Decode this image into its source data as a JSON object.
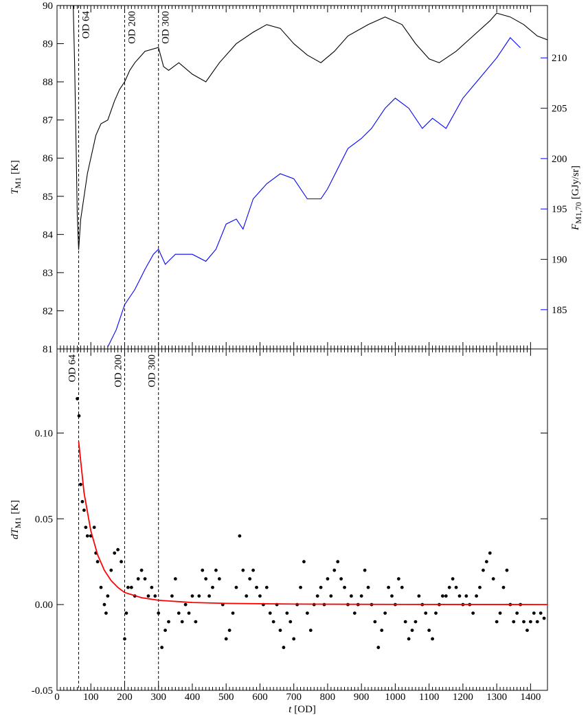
{
  "chart_data": [
    {
      "type": "line",
      "ylabel": {
        "symbol": "T",
        "subscript": "M1",
        "unit": "[K]"
      },
      "y2label": {
        "symbol": "F",
        "subscript": "M1,70",
        "unit": "[GJy/sr]"
      },
      "xlim": [
        0,
        1450
      ],
      "xticks": [
        0,
        100,
        200,
        300,
        400,
        500,
        600,
        700,
        800,
        900,
        1000,
        1100,
        1200,
        1300,
        1400
      ],
      "ylim": [
        81,
        90
      ],
      "yticks": [
        81,
        82,
        83,
        84,
        85,
        86,
        87,
        88,
        89,
        90
      ],
      "y2lim": [
        181.1,
        215.2
      ],
      "y2ticks": [
        185,
        190,
        195,
        200,
        205,
        210
      ],
      "vlines": [
        {
          "value": 64,
          "label": "OD 64"
        },
        {
          "value": 200,
          "label": "OD 200"
        },
        {
          "value": 300,
          "label": "OD 300"
        }
      ],
      "series": [
        {
          "color": "#000000",
          "x": [
            44,
            48,
            52,
            56,
            60,
            64,
            70,
            80,
            90,
            100,
            115,
            130,
            150,
            170,
            185,
            200,
            215,
            230,
            260,
            300,
            315,
            330,
            360,
            400,
            440,
            480,
            530,
            580,
            620,
            660,
            700,
            740,
            780,
            820,
            860,
            920,
            970,
            1020,
            1060,
            1100,
            1130,
            1180,
            1230,
            1280,
            1300,
            1340,
            1380,
            1420,
            1450
          ],
          "values": [
            91.5,
            90,
            88.5,
            86.5,
            84.5,
            83.6,
            84.4,
            85,
            85.6,
            86,
            86.6,
            86.9,
            87,
            87.5,
            87.8,
            88,
            88.3,
            88.5,
            88.8,
            88.9,
            88.4,
            88.3,
            88.5,
            88.2,
            88,
            88.5,
            89,
            89.3,
            89.5,
            89.4,
            89,
            88.7,
            88.5,
            88.8,
            89.2,
            89.5,
            89.7,
            89.5,
            89,
            88.6,
            88.5,
            88.8,
            89.2,
            89.6,
            89.8,
            89.7,
            89.5,
            89.2,
            89.1
          ]
        },
        {
          "color": "#0000ff",
          "axis": "y2",
          "x": [
            150,
            175,
            200,
            230,
            260,
            285,
            300,
            320,
            350,
            400,
            440,
            470,
            500,
            530,
            550,
            580,
            620,
            660,
            700,
            740,
            780,
            800,
            830,
            860,
            900,
            930,
            970,
            1000,
            1040,
            1080,
            1110,
            1150,
            1200,
            1250,
            1300,
            1340,
            1370
          ],
          "values": [
            181.3,
            183,
            185.5,
            187,
            189,
            190.5,
            191,
            189.5,
            190.5,
            190.5,
            189.8,
            191,
            193.5,
            194,
            193,
            196,
            197.5,
            198.5,
            198,
            196,
            196,
            197,
            199,
            201,
            202,
            203,
            205,
            206,
            205,
            203,
            204,
            203,
            206,
            208,
            210,
            212,
            211
          ]
        }
      ]
    },
    {
      "type": "scatter",
      "xlabel": {
        "symbol": "t",
        "unit": "[OD]"
      },
      "ylabel": {
        "symbol": "dT",
        "subscript": "M1",
        "unit": "[K]"
      },
      "xlim": [
        0,
        1450
      ],
      "xticks": [
        0,
        100,
        200,
        300,
        400,
        500,
        600,
        700,
        800,
        900,
        1000,
        1100,
        1200,
        1300,
        1400
      ],
      "ylim": [
        -0.05,
        0.149
      ],
      "yticks": [
        -0.05,
        {
          "value": 0,
          "label": "0.00"
        },
        0.05,
        {
          "value": 0.1,
          "label": "0.10"
        }
      ],
      "vlines": [
        {
          "value": 64,
          "label": "OD 64"
        },
        {
          "value": 200,
          "label": "OD 200"
        },
        {
          "value": 300,
          "label": "OD 300"
        }
      ],
      "series": [
        {
          "type": "scatter",
          "color": "#000000",
          "x": [
            60,
            65,
            70,
            75,
            80,
            85,
            90,
            100,
            110,
            115,
            120,
            130,
            140,
            145,
            150,
            160,
            170,
            180,
            190,
            200,
            205,
            210,
            220,
            230,
            240,
            250,
            260,
            270,
            280,
            290,
            300,
            310,
            320,
            330,
            340,
            350,
            360,
            370,
            380,
            390,
            400,
            410,
            420,
            430,
            440,
            450,
            460,
            470,
            480,
            490,
            500,
            510,
            520,
            530,
            540,
            550,
            560,
            570,
            580,
            590,
            600,
            610,
            620,
            630,
            640,
            650,
            660,
            670,
            680,
            690,
            700,
            710,
            720,
            730,
            740,
            750,
            760,
            770,
            780,
            790,
            800,
            810,
            820,
            830,
            840,
            850,
            860,
            870,
            880,
            890,
            900,
            910,
            920,
            930,
            940,
            950,
            960,
            970,
            980,
            990,
            1000,
            1010,
            1020,
            1030,
            1040,
            1050,
            1060,
            1070,
            1080,
            1090,
            1100,
            1110,
            1120,
            1130,
            1140,
            1150,
            1160,
            1170,
            1180,
            1190,
            1200,
            1210,
            1220,
            1230,
            1240,
            1250,
            1260,
            1270,
            1280,
            1290,
            1300,
            1310,
            1320,
            1330,
            1340,
            1350,
            1360,
            1370,
            1380,
            1390,
            1400,
            1410,
            1420,
            1430,
            1440
          ],
          "values": [
            0.12,
            0.11,
            0.07,
            0.06,
            0.055,
            0.045,
            0.04,
            0.04,
            0.045,
            0.03,
            0.025,
            0.01,
            0.0,
            -0.005,
            0.005,
            0.02,
            0.03,
            0.032,
            0.025,
            -0.02,
            -0.005,
            0.01,
            0.01,
            0.005,
            0.015,
            0.02,
            0.015,
            0.005,
            0.01,
            0.005,
            -0.005,
            -0.025,
            -0.015,
            -0.01,
            0.005,
            0.015,
            -0.005,
            -0.01,
            0.0,
            -0.005,
            0.005,
            -0.01,
            0.005,
            0.02,
            0.015,
            0.005,
            0.01,
            0.02,
            0.015,
            0.0,
            -0.02,
            -0.015,
            -0.005,
            0.01,
            0.04,
            0.02,
            0.005,
            0.015,
            0.02,
            0.01,
            0.005,
            0.0,
            0.01,
            -0.005,
            -0.01,
            0.0,
            -0.015,
            -0.025,
            -0.005,
            -0.01,
            -0.02,
            0.0,
            0.01,
            0.025,
            -0.005,
            -0.015,
            0.0,
            0.005,
            0.01,
            0.0,
            0.015,
            0.005,
            0.02,
            0.025,
            0.015,
            0.01,
            0.0,
            0.005,
            -0.005,
            0.0,
            0.005,
            0.02,
            0.01,
            0.0,
            -0.01,
            -0.025,
            -0.015,
            -0.005,
            0.01,
            0.005,
            0.0,
            0.015,
            0.01,
            -0.01,
            -0.02,
            -0.015,
            -0.01,
            0.005,
            0.0,
            -0.005,
            -0.015,
            -0.02,
            -0.005,
            0.0,
            0.005,
            0.005,
            0.01,
            0.015,
            0.01,
            0.005,
            0.0,
            0.005,
            0.0,
            -0.005,
            0.005,
            0.01,
            0.02,
            0.025,
            0.03,
            0.015,
            -0.01,
            -0.005,
            0.01,
            0.02,
            0.0,
            -0.01,
            -0.005,
            0.0,
            -0.01,
            -0.015,
            -0.01,
            -0.005,
            -0.01,
            -0.005,
            -0.008
          ]
        },
        {
          "type": "line",
          "color": "#ff0000",
          "x": [
            64,
            80,
            100,
            120,
            140,
            160,
            180,
            200,
            250,
            300,
            400,
            500,
            700,
            1000,
            1450
          ],
          "values": [
            0.095,
            0.065,
            0.043,
            0.029,
            0.02,
            0.014,
            0.01,
            0.007,
            0.004,
            0.0025,
            0.0012,
            0.0007,
            0.0003,
            0.0001,
            0.0
          ]
        }
      ]
    }
  ]
}
